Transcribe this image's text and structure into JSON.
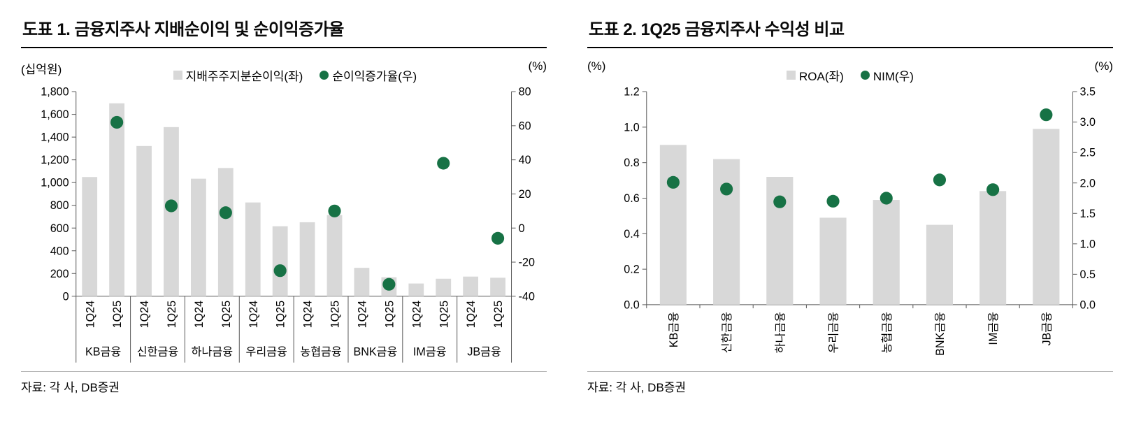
{
  "colors": {
    "bar": "#d8d8d8",
    "dot": "#177245",
    "axis": "#595959",
    "text": "#000000",
    "title_rule": "#000000"
  },
  "chart_data": [
    {
      "type": "bar",
      "subtype": "grouped bars with secondary-axis scatter",
      "title": "도표 1. 금융지주사 지배순이익 및 순이익증가율",
      "unit_left": "(십억원)",
      "unit_right": "(%)",
      "legend": [
        {
          "swatch": "bar",
          "label": "지배주주지분순이익(좌)"
        },
        {
          "swatch": "dot",
          "label": "순이익증가율(우)"
        }
      ],
      "groups": [
        "KB금융",
        "신한금융",
        "하나금융",
        "우리금융",
        "농협금융",
        "BNK금융",
        "IM금융",
        "JB금융"
      ],
      "sub_categories": [
        "1Q24",
        "1Q25"
      ],
      "series": [
        {
          "name": "지배주주지분순이익(좌)",
          "type": "bar",
          "axis": "left",
          "values": [
            [
              1049,
              1697
            ],
            [
              1322,
              1488
            ],
            [
              1034,
              1128
            ],
            [
              825,
              616
            ],
            [
              651,
              714
            ],
            [
              250,
              167
            ],
            [
              112,
              154
            ],
            [
              173,
              163
            ]
          ]
        },
        {
          "name": "순이익증가율(우)",
          "type": "scatter",
          "axis": "right",
          "plotted_on": "1Q25",
          "values": [
            62,
            13,
            9,
            -25,
            10,
            -33,
            38,
            -6
          ]
        }
      ],
      "left_axis": {
        "min": 0,
        "max": 1800,
        "ticks": [
          0,
          200,
          400,
          600,
          800,
          1000,
          1200,
          1400,
          1600,
          1800
        ],
        "labels": [
          "0",
          "200",
          "400",
          "600",
          "800",
          "1,000",
          "1,200",
          "1,400",
          "1,600",
          "1,800"
        ]
      },
      "right_axis": {
        "min": -40,
        "max": 80,
        "ticks": [
          -40,
          -20,
          0,
          20,
          40,
          60,
          80
        ],
        "labels": [
          "-40",
          "-20",
          "0",
          "20",
          "40",
          "60",
          "80"
        ]
      },
      "grid": false,
      "legend_position": "top-center",
      "source": "자료: 각 사, DB증권"
    },
    {
      "type": "bar",
      "subtype": "bars with secondary-axis scatter",
      "title": "도표 2. 1Q25 금융지주사 수익성 비교",
      "unit_left": "(%)",
      "unit_right": "(%)",
      "legend": [
        {
          "swatch": "bar",
          "label": "ROA(좌)"
        },
        {
          "swatch": "dot",
          "label": "NIM(우)"
        }
      ],
      "categories": [
        "KB금융",
        "신한금융",
        "하나금융",
        "우리금융",
        "농협금융",
        "BNK금융",
        "IM금융",
        "JB금융"
      ],
      "series": [
        {
          "name": "ROA(좌)",
          "type": "bar",
          "axis": "left",
          "values": [
            0.9,
            0.82,
            0.72,
            0.49,
            0.59,
            0.45,
            0.64,
            0.99
          ]
        },
        {
          "name": "NIM(우)",
          "type": "scatter",
          "axis": "right",
          "values": [
            2.01,
            1.9,
            1.69,
            1.7,
            1.75,
            2.05,
            1.89,
            3.12
          ]
        }
      ],
      "left_axis": {
        "min": 0,
        "max": 1.2,
        "ticks": [
          0,
          0.2,
          0.4,
          0.6,
          0.8,
          1.0,
          1.2
        ],
        "labels": [
          "0.0",
          "0.2",
          "0.4",
          "0.6",
          "0.8",
          "1.0",
          "1.2"
        ]
      },
      "right_axis": {
        "min": 0,
        "max": 3.5,
        "ticks": [
          0,
          0.5,
          1.0,
          1.5,
          2.0,
          2.5,
          3.0,
          3.5
        ],
        "labels": [
          "0.0",
          "0.5",
          "1.0",
          "1.5",
          "2.0",
          "2.5",
          "3.0",
          "3.5"
        ]
      },
      "grid": false,
      "legend_position": "top-center",
      "source": "자료: 각 사, DB증권"
    }
  ]
}
